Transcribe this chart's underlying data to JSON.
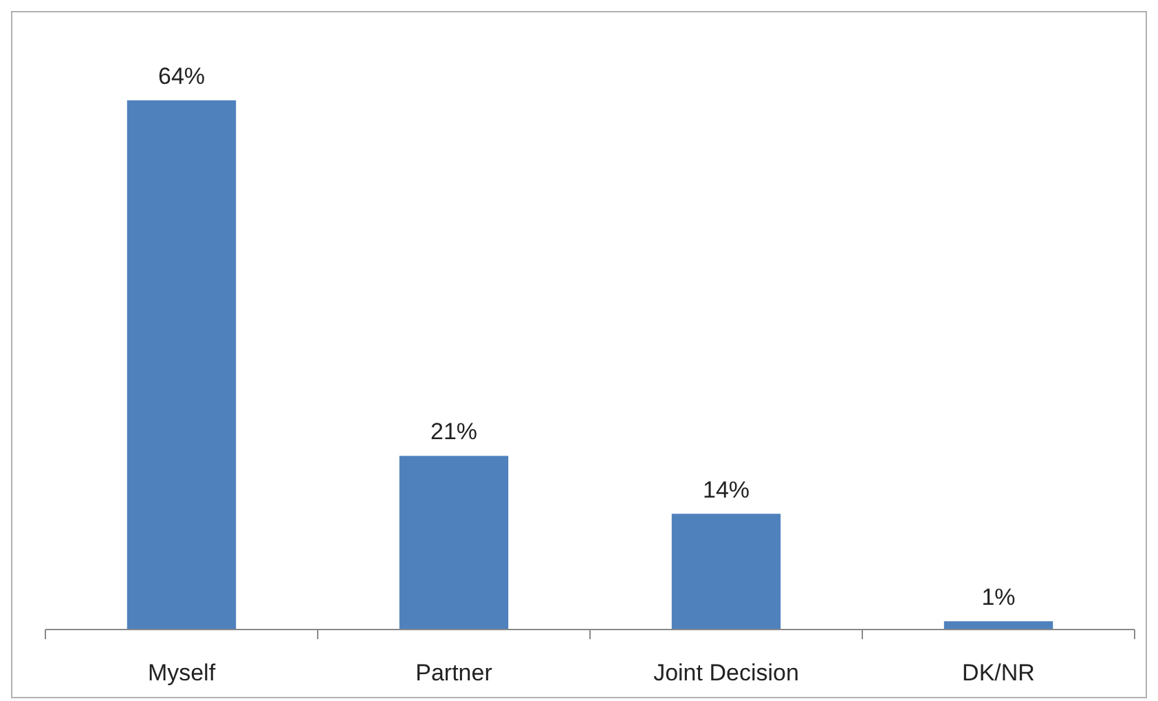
{
  "chart_data": {
    "type": "bar",
    "categories": [
      "Myself",
      "Partner",
      "Joint Decision",
      "DK/NR"
    ],
    "values": [
      64,
      21,
      14,
      1
    ],
    "color": "#4f81bd",
    "value_labels": [
      "64%",
      "21%",
      "14%",
      "1%"
    ]
  }
}
